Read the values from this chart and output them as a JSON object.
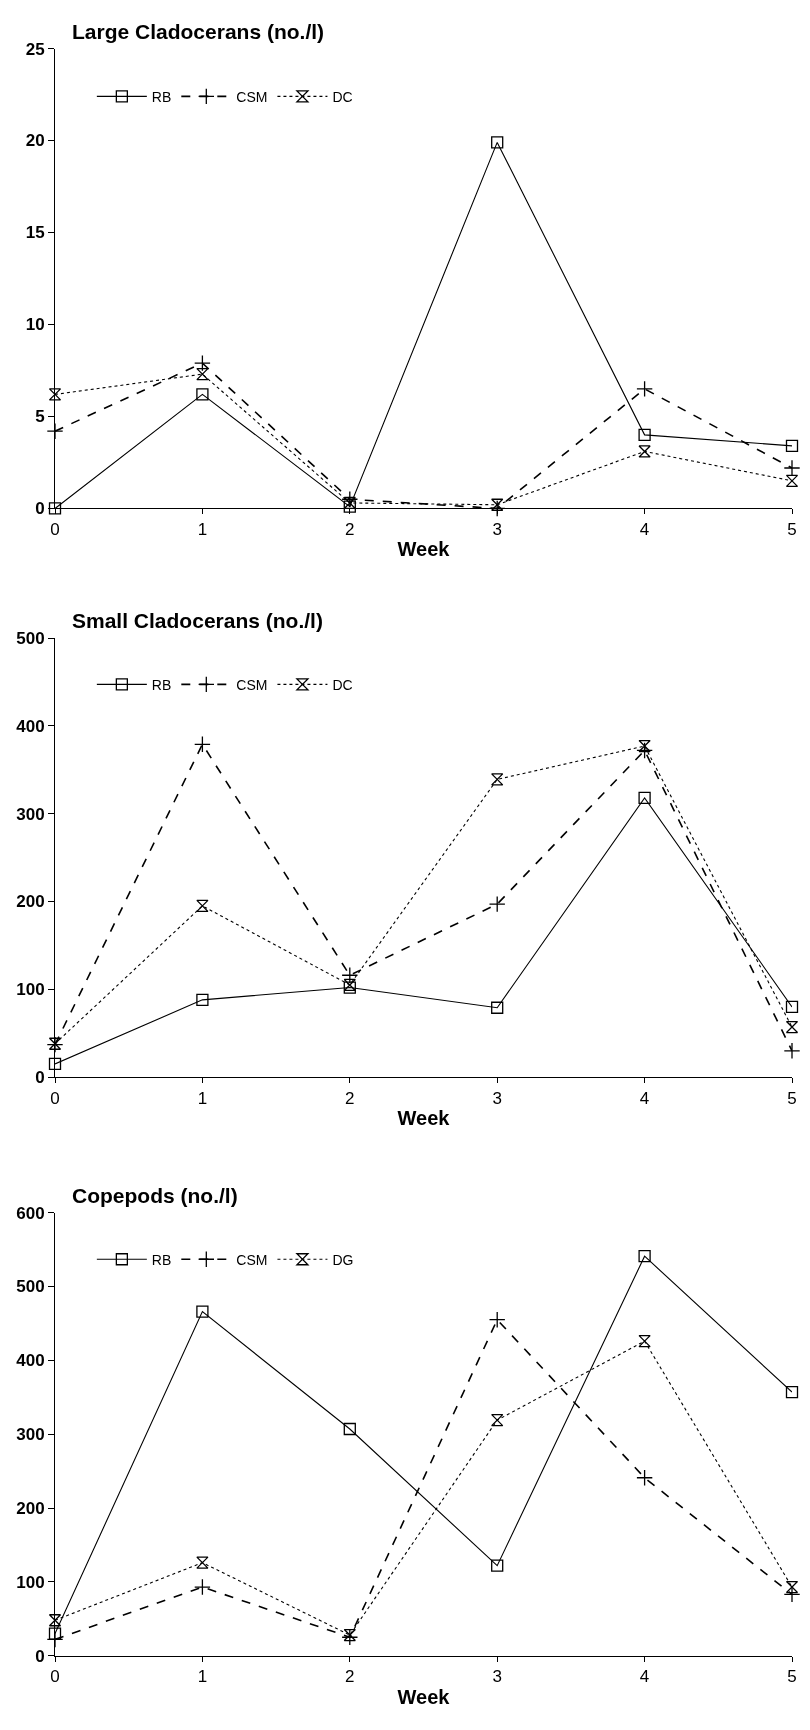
{
  "chart_data": [
    {
      "type": "line",
      "title": "Large Cladocerans (no./l)",
      "xlabel": "Week",
      "x": [
        0,
        1,
        2,
        3,
        4,
        5
      ],
      "xlim": [
        0,
        5
      ],
      "xticks": [
        0,
        1,
        2,
        3,
        4,
        5
      ],
      "ylim": [
        0,
        25
      ],
      "yticks": [
        0,
        5,
        10,
        15,
        20,
        25
      ],
      "legend": "top left",
      "series": [
        {
          "name": "RB",
          "color": "#000000",
          "marker": "square",
          "line_style": "solid",
          "values": [
            0,
            6.2,
            0.1,
            19.9,
            4.0,
            3.4
          ]
        },
        {
          "name": "CSM",
          "color": "#000000",
          "marker": "cross",
          "line_style": "dashed",
          "values": [
            4.2,
            7.9,
            0.5,
            0,
            6.5,
            2.2
          ]
        },
        {
          "name": "DC",
          "color": "#000000",
          "marker": "diamond",
          "line_style": "dotted",
          "values": [
            6.2,
            7.3,
            0.3,
            0.2,
            3.1,
            1.5
          ]
        }
      ]
    },
    {
      "type": "line",
      "title": "Small Cladocerans (no./l)",
      "xlabel": "Week",
      "x": [
        0,
        1,
        2,
        3,
        4,
        5
      ],
      "xlim": [
        0,
        5
      ],
      "xticks": [
        0,
        1,
        2,
        3,
        4,
        5
      ],
      "ylim": [
        0,
        500
      ],
      "yticks": [
        0,
        100,
        200,
        300,
        400,
        500
      ],
      "legend": "top left",
      "series": [
        {
          "name": "RB",
          "color": "#000000",
          "marker": "square",
          "line_style": "solid",
          "values": [
            15,
            88,
            102,
            79,
            318,
            80
          ]
        },
        {
          "name": "CSM",
          "color": "#000000",
          "marker": "cross",
          "line_style": "dashed",
          "values": [
            37,
            379,
            116,
            197,
            372,
            30
          ]
        },
        {
          "name": "DC",
          "color": "#000000",
          "marker": "diamond",
          "line_style": "dotted",
          "values": [
            38,
            195,
            105,
            339,
            377,
            57
          ]
        }
      ]
    },
    {
      "type": "line",
      "title": "Copepods (no./l)",
      "xlabel": "Week",
      "x": [
        0,
        1,
        2,
        3,
        4,
        5
      ],
      "xlim": [
        0,
        5
      ],
      "xticks": [
        0,
        1,
        2,
        3,
        4,
        5
      ],
      "ylim": [
        0,
        600
      ],
      "yticks": [
        0,
        100,
        200,
        300,
        400,
        500,
        600
      ],
      "legend": "top left",
      "series": [
        {
          "name": "RB",
          "color": "#000000",
          "marker": "square",
          "line_style": "solid",
          "values": [
            30,
            466,
            307,
            122,
            541,
            357
          ]
        },
        {
          "name": "CSM",
          "color": "#000000",
          "marker": "cross",
          "line_style": "dashed",
          "values": [
            22,
            93,
            25,
            455,
            241,
            83
          ]
        },
        {
          "name": "DG",
          "color": "#000000",
          "marker": "diamond",
          "line_style": "dotted",
          "values": [
            48,
            126,
            28,
            319,
            426,
            93
          ]
        }
      ]
    }
  ]
}
